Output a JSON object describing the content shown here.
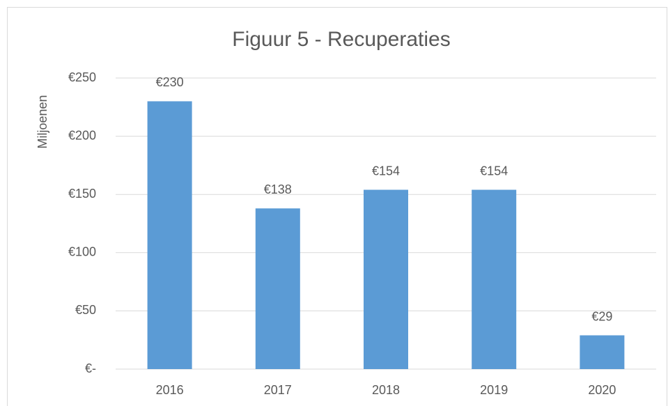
{
  "chart_data": {
    "type": "bar",
    "title": "Figuur 5 - Recuperaties",
    "y_label": "Miljoenen",
    "categories": [
      "2016",
      "2017",
      "2018",
      "2019",
      "2020"
    ],
    "values": [
      230,
      138,
      154,
      154,
      29
    ],
    "value_labels": [
      "€230",
      "€138",
      "€154",
      "€154",
      "€29"
    ],
    "color": "#5b9bd5",
    "ylim": [
      0,
      250
    ],
    "yticks": [
      {
        "value": 0,
        "label": "€-"
      },
      {
        "value": 50,
        "label": "€50"
      },
      {
        "value": 100,
        "label": "€100"
      },
      {
        "value": 150,
        "label": "€150"
      },
      {
        "value": 200,
        "label": "€200"
      },
      {
        "value": 250,
        "label": "€250"
      }
    ],
    "grid": true
  }
}
